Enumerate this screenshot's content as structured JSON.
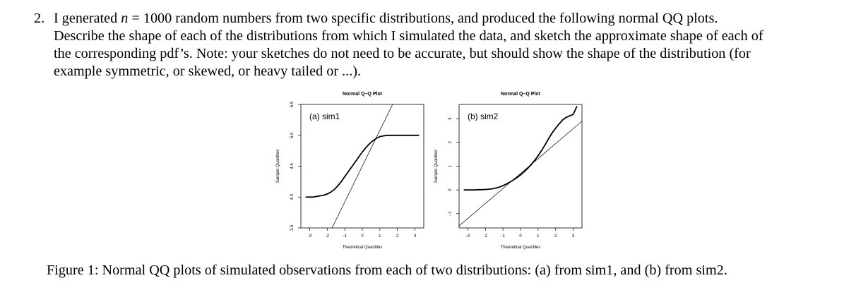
{
  "problem": {
    "number": "2.",
    "line1_a": "I generated ",
    "line1_var": "n",
    "line1_b": " = 1000 random numbers from two specific distributions, and produced the following normal QQ plots.",
    "line2": "Describe the shape of each of the distributions from which I simulated the data, and sketch the approximate shape of each of",
    "line3": "the corresponding pdf’s. Note: your sketches do not need to be accurate, but should show the shape of the distribution (for",
    "line4": "example symmetric, or skewed, or heavy tailed or ...)."
  },
  "caption": "Figure 1: Normal QQ plots of simulated observations from each of two distributions: (a) from sim1, and (b) from sim2.",
  "chart_data": [
    {
      "type": "scatter",
      "title": "Normal Q–Q Plot",
      "panel_label": "(a) sim1",
      "xlabel": "Theoretical Quantiles",
      "ylabel": "Sample Quantiles",
      "xlim": [
        -3.5,
        3.5
      ],
      "ylim": [
        3.5,
        5.5
      ],
      "xticks": [
        -3,
        -2,
        -1,
        0,
        1,
        2,
        3
      ],
      "yticks": [
        3.5,
        4.0,
        4.5,
        5.0,
        5.5
      ],
      "xtick_labels": [
        "-3",
        "-2",
        "-1",
        "0",
        "1",
        "2",
        "3"
      ],
      "ytick_labels": [
        "3.5",
        "4.0",
        "4.5",
        "5.0",
        "5.5"
      ],
      "qq_line": {
        "intercept": 4.5,
        "slope": 0.58
      },
      "points": {
        "x": [
          -3.2,
          -3.0,
          -2.8,
          -2.6,
          -2.4,
          -2.2,
          -2.0,
          -1.8,
          -1.6,
          -1.4,
          -1.2,
          -1.0,
          -0.8,
          -0.6,
          -0.4,
          -0.2,
          0.0,
          0.2,
          0.4,
          0.6,
          0.8,
          1.0,
          1.2,
          1.4,
          1.6,
          1.8,
          2.0,
          2.2,
          2.4,
          2.6,
          2.8,
          3.0,
          3.2
        ],
        "y": [
          4.0,
          4.0,
          4.0,
          4.01,
          4.02,
          4.03,
          4.05,
          4.08,
          4.12,
          4.18,
          4.25,
          4.33,
          4.41,
          4.49,
          4.57,
          4.65,
          4.73,
          4.8,
          4.86,
          4.91,
          4.95,
          4.98,
          4.99,
          5.0,
          5.0,
          5.0,
          5.0,
          5.0,
          5.0,
          5.0,
          5.0,
          5.0,
          5.0
        ]
      }
    },
    {
      "type": "scatter",
      "title": "Normal Q–Q Plot",
      "panel_label": "(b) sim2",
      "xlabel": "Theoretical Quantiles",
      "ylabel": "Sample Quantiles",
      "xlim": [
        -3.5,
        3.5
      ],
      "ylim": [
        -1.6,
        3.6
      ],
      "xticks": [
        -3,
        -2,
        -1,
        0,
        1,
        2,
        3
      ],
      "yticks": [
        -1,
        0,
        1,
        2,
        3
      ],
      "xtick_labels": [
        "-3",
        "-2",
        "-1",
        "0",
        "1",
        "2",
        "3"
      ],
      "ytick_labels": [
        "−1",
        "0",
        "1",
        "2",
        "3"
      ],
      "qq_line": {
        "intercept": 0.69,
        "slope": 0.63
      },
      "points": {
        "x": [
          -3.2,
          -3.0,
          -2.8,
          -2.6,
          -2.4,
          -2.2,
          -2.0,
          -1.8,
          -1.6,
          -1.4,
          -1.2,
          -1.0,
          -0.8,
          -0.6,
          -0.4,
          -0.2,
          0.0,
          0.2,
          0.4,
          0.6,
          0.8,
          1.0,
          1.2,
          1.4,
          1.6,
          1.8,
          2.0,
          2.2,
          2.4,
          2.6,
          2.8,
          3.0,
          3.2
        ],
        "y": [
          0.0,
          0.0,
          0.0,
          0.0,
          0.01,
          0.01,
          0.02,
          0.03,
          0.05,
          0.08,
          0.12,
          0.18,
          0.25,
          0.33,
          0.42,
          0.52,
          0.63,
          0.76,
          0.9,
          1.06,
          1.24,
          1.44,
          1.66,
          1.9,
          2.16,
          2.4,
          2.6,
          2.78,
          2.95,
          3.05,
          3.12,
          3.18,
          3.5
        ]
      }
    }
  ]
}
